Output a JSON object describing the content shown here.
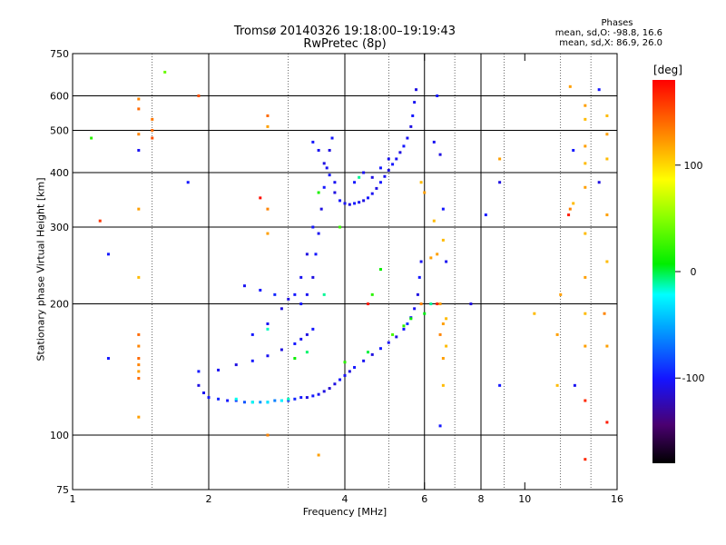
{
  "header": {
    "title_line1": "Tromsø 20140326 19:18:00–19:19:43",
    "title_line2": "RwPretec (8p)"
  },
  "phase_stats": {
    "heading": "Phases",
    "line_o": "mean, sd,O: -98.8, 16.6",
    "line_x": "mean, sd,X: 86.9, 26.0"
  },
  "chart_data": {
    "type": "scatter",
    "xlabel": "Frequency [MHz]",
    "ylabel": "Stationary phase Virtual Height [km]",
    "xscale": "log",
    "yscale": "log",
    "xlim": [
      1,
      16
    ],
    "ylim": [
      75,
      750
    ],
    "x_ticks": [
      1,
      2,
      4,
      6,
      8,
      10,
      16
    ],
    "y_ticks": [
      75,
      100,
      200,
      300,
      400,
      500,
      600,
      750
    ],
    "grid_x": [
      2,
      4,
      6,
      8
    ],
    "grid_y": [
      100,
      200,
      300,
      400,
      500,
      600
    ],
    "minor_x": [
      1.5,
      3,
      5,
      7,
      9,
      12,
      14
    ],
    "colorbar": {
      "label": "[deg]",
      "min": -180,
      "max": 180,
      "ticks": [
        100,
        0,
        -100
      ]
    },
    "series": [
      {
        "values": [
          [
            1.9,
            130,
            -110
          ],
          [
            1.95,
            125,
            -105
          ],
          [
            2.0,
            122,
            -100
          ],
          [
            2.1,
            121,
            -95
          ],
          [
            2.2,
            120,
            -100
          ],
          [
            2.3,
            120,
            -90
          ],
          [
            2.4,
            119,
            -80
          ],
          [
            2.5,
            119,
            -70
          ],
          [
            2.6,
            119,
            -60
          ],
          [
            2.7,
            119,
            -60
          ],
          [
            2.8,
            120,
            -65
          ],
          [
            2.9,
            120,
            -75
          ],
          [
            3.0,
            120,
            -90
          ],
          [
            3.1,
            121,
            -95
          ],
          [
            3.2,
            122,
            -100
          ],
          [
            3.3,
            122,
            -110
          ],
          [
            3.4,
            123,
            -100
          ],
          [
            3.5,
            124,
            -105
          ],
          [
            3.6,
            126,
            -110
          ],
          [
            3.7,
            128,
            -115
          ],
          [
            3.8,
            131,
            -110
          ],
          [
            3.9,
            134,
            -100
          ],
          [
            4.0,
            137,
            -105
          ],
          [
            4.1,
            140,
            -110
          ],
          [
            4.2,
            143,
            -100
          ],
          [
            4.4,
            148,
            -105
          ],
          [
            4.6,
            153,
            -110
          ],
          [
            4.8,
            158,
            -100
          ],
          [
            5.0,
            163,
            -105
          ],
          [
            5.2,
            168,
            -110
          ],
          [
            5.4,
            175,
            -100
          ],
          [
            5.5,
            180,
            -90
          ],
          [
            5.6,
            186,
            -100
          ],
          [
            5.7,
            195,
            -105
          ],
          [
            5.8,
            210,
            -110
          ],
          [
            5.85,
            230,
            -100
          ],
          [
            5.9,
            250,
            -105
          ],
          [
            1.9,
            140,
            -100
          ],
          [
            2.1,
            141,
            -105
          ],
          [
            2.3,
            145,
            -110
          ],
          [
            2.5,
            148,
            -100
          ],
          [
            2.7,
            152,
            -105
          ],
          [
            2.9,
            157,
            -110
          ],
          [
            3.1,
            162,
            -100
          ],
          [
            3.2,
            166,
            -105
          ],
          [
            3.3,
            170,
            -110
          ],
          [
            3.4,
            175,
            -100
          ],
          [
            2.4,
            220,
            -105
          ],
          [
            2.6,
            215,
            -100
          ],
          [
            2.8,
            210,
            -95
          ],
          [
            3.0,
            205,
            -110
          ],
          [
            3.2,
            200,
            -100
          ],
          [
            3.3,
            210,
            -105
          ],
          [
            3.4,
            230,
            -110
          ],
          [
            3.45,
            260,
            -100
          ],
          [
            3.5,
            290,
            -105
          ],
          [
            3.55,
            330,
            -110
          ],
          [
            3.6,
            370,
            -100
          ],
          [
            3.65,
            410,
            -105
          ],
          [
            3.7,
            450,
            -110
          ],
          [
            3.75,
            480,
            -100
          ],
          [
            2.5,
            170,
            -100
          ],
          [
            2.7,
            180,
            -105
          ],
          [
            2.9,
            195,
            -110
          ],
          [
            3.1,
            210,
            -100
          ],
          [
            3.2,
            230,
            -105
          ],
          [
            3.3,
            260,
            -110
          ],
          [
            3.4,
            300,
            -100
          ],
          [
            3.8,
            360,
            -110
          ],
          [
            3.9,
            345,
            -100
          ],
          [
            4.0,
            340,
            -105
          ],
          [
            4.1,
            338,
            -110
          ],
          [
            4.2,
            340,
            -100
          ],
          [
            4.3,
            342,
            -105
          ],
          [
            4.4,
            345,
            -110
          ],
          [
            4.5,
            350,
            -100
          ],
          [
            4.6,
            358,
            -105
          ],
          [
            4.7,
            368,
            -110
          ],
          [
            4.8,
            380,
            -100
          ],
          [
            4.9,
            392,
            -105
          ],
          [
            5.0,
            405,
            -110
          ],
          [
            5.1,
            418,
            -100
          ],
          [
            5.2,
            430,
            -105
          ],
          [
            5.3,
            445,
            -110
          ],
          [
            5.4,
            460,
            -100
          ],
          [
            5.5,
            480,
            -105
          ],
          [
            5.6,
            510,
            -110
          ],
          [
            5.65,
            540,
            -100
          ],
          [
            5.7,
            580,
            -105
          ],
          [
            5.75,
            620,
            -110
          ],
          [
            4.2,
            380,
            -100
          ],
          [
            4.4,
            400,
            -105
          ],
          [
            4.6,
            390,
            -110
          ],
          [
            4.8,
            410,
            -100
          ],
          [
            5.0,
            430,
            -105
          ],
          [
            3.4,
            470,
            -100
          ],
          [
            3.5,
            450,
            -105
          ],
          [
            3.6,
            420,
            -110
          ],
          [
            3.7,
            395,
            -100
          ],
          [
            3.8,
            380,
            -105
          ],
          [
            1.2,
            260,
            -100
          ],
          [
            1.2,
            150,
            -100
          ],
          [
            1.4,
            450,
            -105
          ],
          [
            1.8,
            380,
            -100
          ],
          [
            6.4,
            600,
            -100
          ],
          [
            6.3,
            470,
            -105
          ],
          [
            6.5,
            440,
            -110
          ],
          [
            6.6,
            330,
            -100
          ],
          [
            6.7,
            250,
            -105
          ],
          [
            8.2,
            320,
            -100
          ],
          [
            8.8,
            130,
            -100
          ],
          [
            8.8,
            380,
            -110
          ],
          [
            12.8,
            450,
            -100
          ],
          [
            12.9,
            130,
            -105
          ],
          [
            14.6,
            380,
            -110
          ],
          [
            14.6,
            620,
            -100
          ],
          [
            7.6,
            200,
            -110
          ],
          [
            6.5,
            105,
            -100
          ]
        ]
      },
      {
        "values": [
          [
            2.3,
            121,
            -20
          ],
          [
            2.5,
            119,
            -20
          ],
          [
            2.7,
            119,
            -30
          ],
          [
            2.9,
            120,
            -25
          ],
          [
            3.0,
            121,
            -15
          ],
          [
            3.1,
            150,
            10
          ],
          [
            3.3,
            155,
            -5
          ],
          [
            4.0,
            147,
            20
          ],
          [
            4.5,
            155,
            0
          ],
          [
            5.1,
            170,
            30
          ],
          [
            5.4,
            178,
            20
          ],
          [
            5.6,
            185,
            10
          ],
          [
            6.0,
            190,
            5
          ],
          [
            6.2,
            200,
            -10
          ],
          [
            3.6,
            210,
            -10
          ],
          [
            3.5,
            360,
            15
          ],
          [
            4.3,
            390,
            -10
          ],
          [
            4.6,
            210,
            20
          ],
          [
            4.8,
            240,
            10
          ],
          [
            1.6,
            680,
            40
          ],
          [
            1.1,
            480,
            20
          ],
          [
            2.7,
            175,
            -15
          ],
          [
            3.9,
            300,
            25
          ]
        ]
      },
      {
        "values": [
          [
            1.4,
            590,
            130
          ],
          [
            1.4,
            560,
            140
          ],
          [
            1.5,
            530,
            135
          ],
          [
            1.5,
            500,
            140
          ],
          [
            1.5,
            480,
            150
          ],
          [
            1.4,
            490,
            130
          ],
          [
            1.4,
            330,
            120
          ],
          [
            1.4,
            230,
            110
          ],
          [
            1.4,
            170,
            140
          ],
          [
            1.4,
            160,
            130
          ],
          [
            1.4,
            150,
            140
          ],
          [
            1.4,
            145,
            130
          ],
          [
            1.4,
            140,
            120
          ],
          [
            1.4,
            135,
            140
          ],
          [
            1.4,
            110,
            120
          ],
          [
            2.7,
            540,
            140
          ],
          [
            2.7,
            510,
            120
          ],
          [
            2.7,
            330,
            130
          ],
          [
            2.7,
            290,
            120
          ],
          [
            2.7,
            100,
            130
          ],
          [
            3.5,
            90,
            120
          ],
          [
            5.9,
            380,
            110
          ],
          [
            6.0,
            360,
            120
          ],
          [
            6.4,
            260,
            120
          ],
          [
            6.6,
            280,
            110
          ],
          [
            6.5,
            200,
            120
          ],
          [
            6.7,
            185,
            110
          ],
          [
            6.6,
            180,
            120
          ],
          [
            6.5,
            170,
            130
          ],
          [
            6.7,
            160,
            110
          ],
          [
            6.6,
            150,
            120
          ],
          [
            6.6,
            130,
            110
          ],
          [
            8.8,
            430,
            120
          ],
          [
            10.5,
            190,
            110
          ],
          [
            11.8,
            170,
            120
          ],
          [
            11.8,
            130,
            110
          ],
          [
            12.0,
            210,
            120
          ],
          [
            12.6,
            330,
            130
          ],
          [
            12.8,
            340,
            110
          ],
          [
            13.6,
            570,
            120
          ],
          [
            13.6,
            530,
            110
          ],
          [
            13.6,
            460,
            120
          ],
          [
            13.6,
            420,
            110
          ],
          [
            13.6,
            370,
            120
          ],
          [
            13.6,
            290,
            110
          ],
          [
            13.6,
            230,
            120
          ],
          [
            13.6,
            190,
            110
          ],
          [
            13.6,
            160,
            120
          ],
          [
            15.2,
            540,
            110
          ],
          [
            15.2,
            490,
            120
          ],
          [
            15.2,
            430,
            110
          ],
          [
            15.2,
            320,
            120
          ],
          [
            15.2,
            250,
            110
          ],
          [
            15.2,
            160,
            120
          ],
          [
            15.0,
            190,
            130
          ],
          [
            12.6,
            630,
            120
          ],
          [
            6.3,
            310,
            110
          ],
          [
            6.2,
            255,
            120
          ],
          [
            5.9,
            200,
            130
          ],
          [
            1.9,
            600,
            150
          ]
        ]
      },
      {
        "values": [
          [
            1.15,
            310,
            160
          ],
          [
            13.6,
            88,
            165
          ],
          [
            15.2,
            107,
            170
          ],
          [
            6.4,
            200,
            165
          ],
          [
            4.5,
            200,
            170
          ],
          [
            2.6,
            350,
            175
          ],
          [
            13.6,
            120,
            165
          ],
          [
            12.5,
            320,
            170
          ]
        ]
      }
    ]
  }
}
